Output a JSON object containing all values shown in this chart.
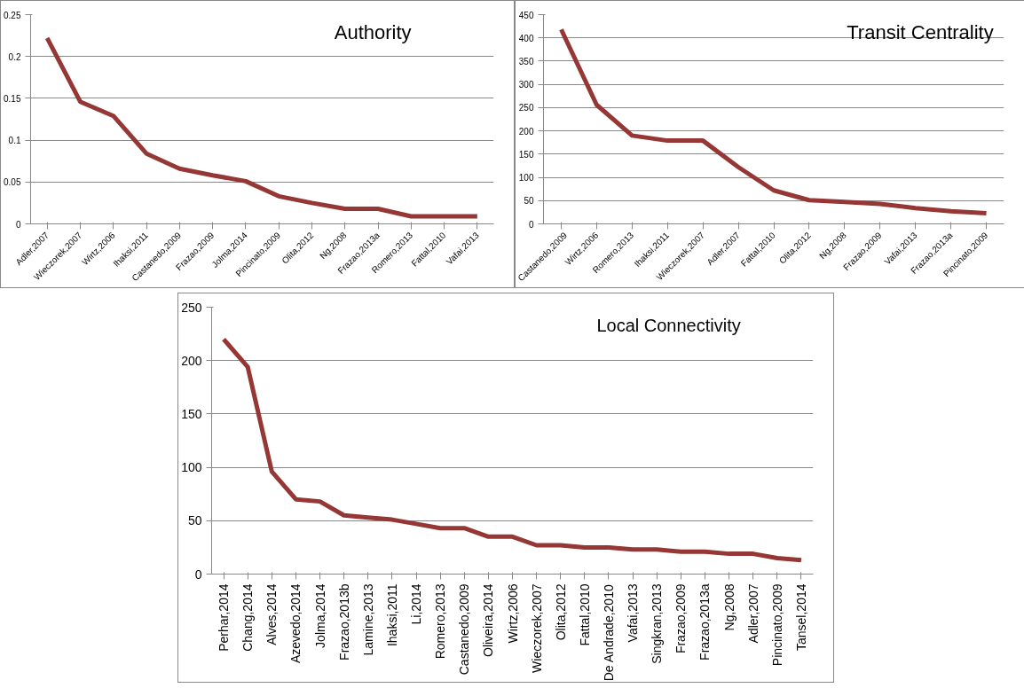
{
  "chart_data": [
    {
      "type": "line",
      "title": "Authority",
      "categories": [
        "Adler,2007",
        "Wieczorek,2007",
        "Wirtz,2006",
        "Ihaksi,2011",
        "Castanedo,2009",
        "Frazao,2009",
        "Jolma,2014",
        "Pincinato,2009",
        "Olita,2012",
        "Ng,2008",
        "Frazao,2013a",
        "Romero,2013",
        "Fattal,2010",
        "Vafai,2013"
      ],
      "values": [
        0.222,
        0.146,
        0.129,
        0.084,
        0.066,
        0.058,
        0.051,
        0.033,
        0.025,
        0.018,
        0.018,
        0.009,
        0.009,
        0.009
      ],
      "color": "#953735",
      "ylim": [
        0,
        0.25
      ],
      "yticks": [
        0,
        0.05,
        0.1,
        0.15,
        0.2,
        0.25
      ],
      "grid": "y"
    },
    {
      "type": "line",
      "title": "Transit Centrality",
      "categories": [
        "Castanedo,2009",
        "Wirtz,2006",
        "Romero,2013",
        "Ihaksi,2011",
        "Wieczorek,2007",
        "Adler,2007",
        "Fattal,2010",
        "Olita,2012",
        "Ng,2008",
        "Frazao,2009",
        "Vafai,2013",
        "Frazao,2013a",
        "Pincinato,2009"
      ],
      "values": [
        418,
        256,
        190,
        179,
        179,
        122,
        72,
        51,
        47,
        43,
        34,
        27,
        23
      ],
      "color": "#953735",
      "ylim": [
        0,
        450
      ],
      "yticks": [
        0,
        50,
        100,
        150,
        200,
        250,
        300,
        350,
        400,
        450
      ],
      "grid": "y"
    },
    {
      "type": "line",
      "title": "Local Connectivity",
      "categories": [
        "Perhar,2014",
        "Chang,2014",
        "Alves,2014",
        "Azevedo,2014",
        "Jolma,2014",
        "Frazao,2013b",
        "Lamine,2013",
        "Ihaksi,2011",
        "Li,2014",
        "Romero,2013",
        "Castanedo,2009",
        "Oliveira,2014",
        "Wirtz,2006",
        "Wieczorek,2007",
        "Olita,2012",
        "Fattal,2010",
        "De Andrade,2010",
        "Vafai,2013",
        "Singkran,2013",
        "Frazao,2009",
        "Frazao,2013a",
        "Ng,2008",
        "Adler,2007",
        "Pincinato,2009",
        "Tansel,2014"
      ],
      "values": [
        220,
        194,
        96,
        70,
        68,
        55,
        53,
        51,
        47,
        43,
        43,
        35,
        35,
        27,
        27,
        25,
        25,
        23,
        23,
        21,
        21,
        19,
        19,
        15,
        13
      ],
      "color": "#953735",
      "ylim": [
        0,
        250
      ],
      "yticks": [
        0,
        50,
        100,
        150,
        200,
        250
      ],
      "grid": "y"
    }
  ]
}
